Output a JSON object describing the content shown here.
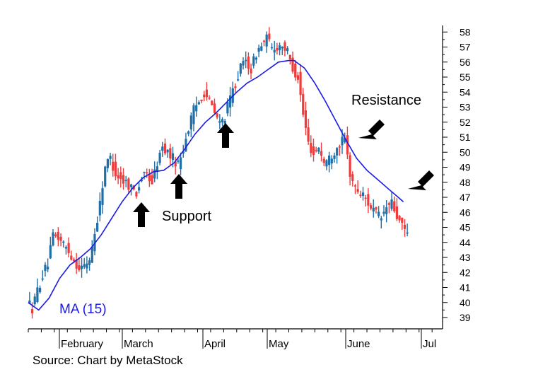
{
  "chart_data": {
    "type": "candlestick",
    "title": "",
    "xlabel": "",
    "ylabel": "",
    "ylim": [
      38.5,
      58.5
    ],
    "y_ticks": [
      39,
      40,
      41,
      42,
      43,
      44,
      45,
      46,
      47,
      48,
      49,
      50,
      51,
      52,
      53,
      54,
      55,
      56,
      57,
      58
    ],
    "y_tick_labels": [
      "39",
      "40",
      "41",
      "42",
      "43",
      "44",
      "45",
      "46",
      "47",
      "48",
      "49",
      "50",
      "51",
      "52",
      "53",
      "54",
      "55",
      "56",
      "57",
      "58"
    ],
    "month_labels": [
      "February",
      "March",
      "April",
      "May",
      "June",
      "Jul"
    ],
    "colors": {
      "up": "#1f6fa8",
      "down": "#ef3b3b",
      "ma": "#1a1ae6",
      "text": "#000000"
    },
    "price_path": [
      [
        0,
        40.2
      ],
      [
        2,
        39.6
      ],
      [
        4,
        40.8
      ],
      [
        6,
        41.8
      ],
      [
        8,
        42.6
      ],
      [
        10,
        44.4
      ],
      [
        12,
        44.3
      ],
      [
        14,
        43.9
      ],
      [
        16,
        43.4
      ],
      [
        18,
        42.8
      ],
      [
        20,
        42.3
      ],
      [
        22,
        42.4
      ],
      [
        24,
        42.9
      ],
      [
        26,
        44.6
      ],
      [
        28,
        46.6
      ],
      [
        30,
        49.1
      ],
      [
        32,
        49.6
      ],
      [
        34,
        48.6
      ],
      [
        36,
        48.2
      ],
      [
        38,
        48.0
      ],
      [
        40,
        47.7
      ],
      [
        42,
        47.3
      ],
      [
        44,
        48.3
      ],
      [
        46,
        48.5
      ],
      [
        48,
        48.0
      ],
      [
        50,
        49.3
      ],
      [
        52,
        50.3
      ],
      [
        54,
        50.0
      ],
      [
        56,
        49.6
      ],
      [
        58,
        49.2
      ],
      [
        60,
        50.3
      ],
      [
        62,
        51.6
      ],
      [
        64,
        52.8
      ],
      [
        66,
        53.4
      ],
      [
        68,
        54.0
      ],
      [
        70,
        53.4
      ],
      [
        72,
        52.6
      ],
      [
        74,
        51.9
      ],
      [
        76,
        52.4
      ],
      [
        78,
        53.6
      ],
      [
        80,
        54.6
      ],
      [
        82,
        55.6
      ],
      [
        84,
        56.1
      ],
      [
        86,
        55.5
      ],
      [
        88,
        56.6
      ],
      [
        90,
        57.1
      ],
      [
        92,
        57.6
      ],
      [
        94,
        56.9
      ],
      [
        96,
        57.0
      ],
      [
        98,
        57.2
      ],
      [
        100,
        56.6
      ],
      [
        102,
        55.6
      ],
      [
        104,
        55.0
      ],
      [
        106,
        52.5
      ],
      [
        108,
        50.6
      ],
      [
        110,
        49.9
      ],
      [
        112,
        50.4
      ],
      [
        114,
        49.3
      ],
      [
        116,
        49.6
      ],
      [
        118,
        50.1
      ],
      [
        120,
        50.6
      ],
      [
        122,
        50.8
      ],
      [
        124,
        48.6
      ],
      [
        126,
        47.6
      ],
      [
        128,
        47.3
      ],
      [
        130,
        46.9
      ],
      [
        132,
        46.4
      ],
      [
        134,
        45.9
      ],
      [
        136,
        45.6
      ],
      [
        138,
        46.3
      ],
      [
        140,
        46.6
      ],
      [
        142,
        45.7
      ],
      [
        144,
        45.0
      ],
      [
        146,
        44.6
      ]
    ],
    "ma": {
      "name": "MA (15)",
      "points": [
        [
          0,
          40.0
        ],
        [
          4,
          39.5
        ],
        [
          8,
          40.3
        ],
        [
          12,
          41.6
        ],
        [
          16,
          42.5
        ],
        [
          20,
          43.0
        ],
        [
          24,
          43.6
        ],
        [
          28,
          44.5
        ],
        [
          32,
          45.6
        ],
        [
          36,
          46.7
        ],
        [
          40,
          47.6
        ],
        [
          44,
          48.3
        ],
        [
          48,
          48.7
        ],
        [
          52,
          48.8
        ],
        [
          56,
          49.3
        ],
        [
          60,
          50.2
        ],
        [
          64,
          51.2
        ],
        [
          68,
          52.0
        ],
        [
          72,
          52.6
        ],
        [
          76,
          53.3
        ],
        [
          80,
          54.0
        ],
        [
          84,
          54.6
        ],
        [
          88,
          55.0
        ],
        [
          92,
          55.5
        ],
        [
          96,
          56.0
        ],
        [
          100,
          56.1
        ],
        [
          102,
          56.1
        ],
        [
          106,
          55.6
        ],
        [
          110,
          54.6
        ],
        [
          114,
          53.4
        ],
        [
          118,
          52.1
        ],
        [
          122,
          50.8
        ],
        [
          126,
          49.6
        ],
        [
          130,
          48.8
        ],
        [
          134,
          48.2
        ],
        [
          138,
          47.6
        ],
        [
          142,
          47.0
        ],
        [
          144,
          46.7
        ]
      ]
    },
    "annotations": {
      "support_label": "Support",
      "resistance_label": "Resistance"
    }
  },
  "source_text": "Source: Chart by MetaStock"
}
